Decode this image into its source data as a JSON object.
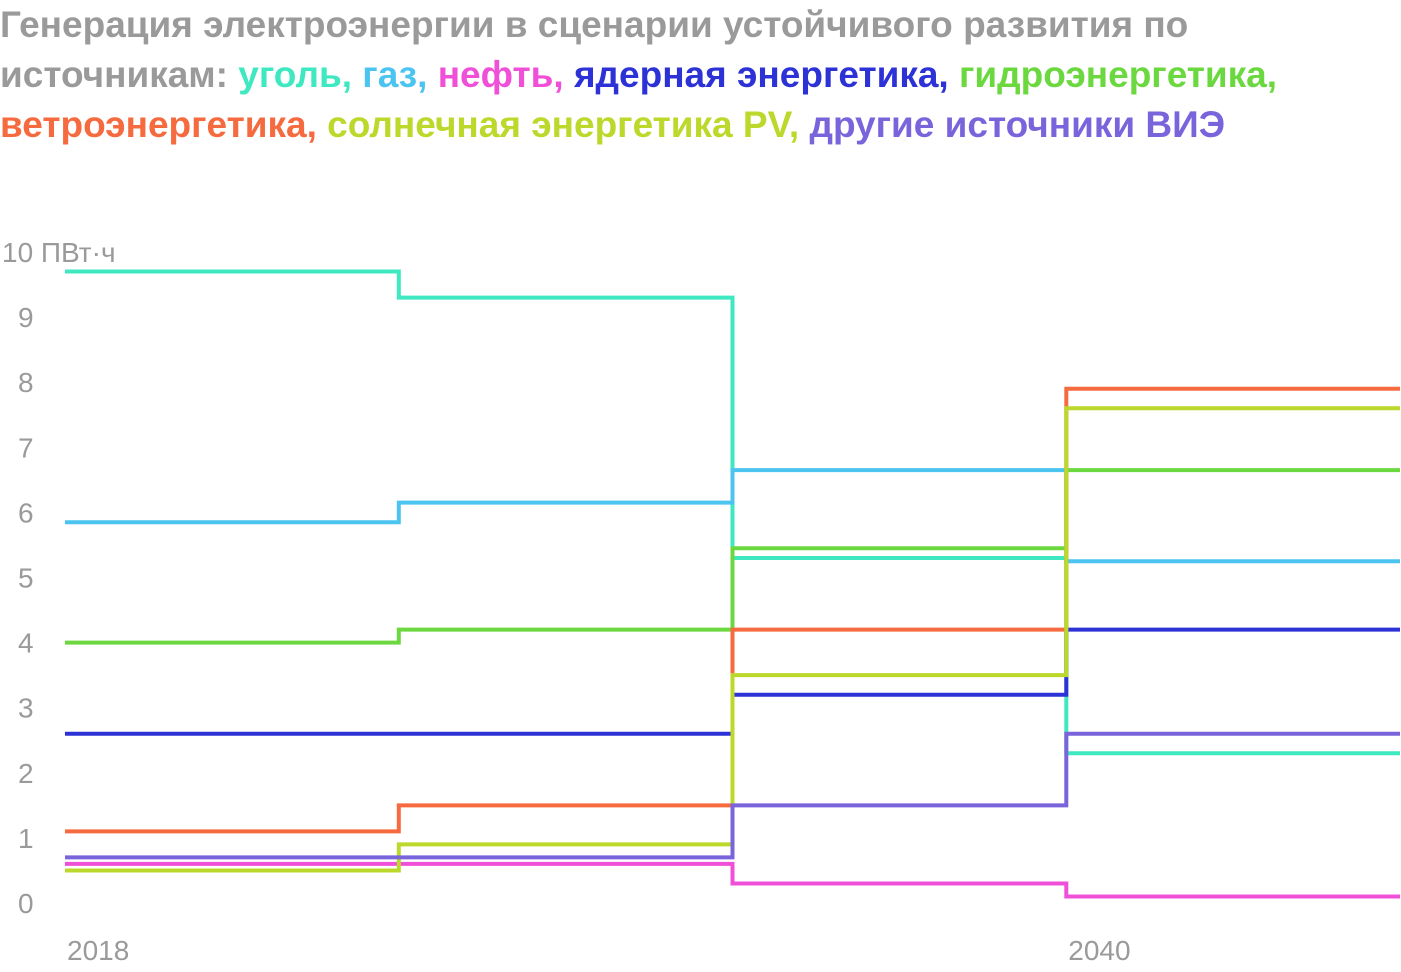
{
  "title": {
    "prefix": "Генерация электроэнергии в сценарии устойчивого развития по источникам: ",
    "legend_items": [
      {
        "text": "уголь",
        "color": "#3ee8c0"
      },
      {
        "text": "газ",
        "color": "#4cc4f0"
      },
      {
        "text": "нефть",
        "color": "#f050d8"
      },
      {
        "text": "ядерная энергетика",
        "color": "#2d32d6"
      },
      {
        "text": "гидроэнергетика",
        "color": "#6cd840"
      },
      {
        "text": "ветроэнергетика",
        "color": "#f56a3e"
      },
      {
        "text": "солнечная энергетика PV",
        "color": "#bcd82a"
      },
      {
        "text": "другие источники ВИЭ",
        "color": "#7a64dc"
      }
    ],
    "separator": ", ",
    "prefix_color": "#9a9a9a"
  },
  "chart_data": {
    "type": "line",
    "step": true,
    "title": "Генерация электроэнергии в сценарии устойчивого развития по источникам",
    "ylabel": "",
    "xlabel": "",
    "y_unit_label": "10 ПВт·ч",
    "ylim": [
      0,
      10
    ],
    "y_ticks": [
      {
        "value": 10,
        "label": "10 ПВт·ч"
      },
      {
        "value": 9,
        "label": "9"
      },
      {
        "value": 8,
        "label": "8"
      },
      {
        "value": 7,
        "label": "7"
      },
      {
        "value": 6,
        "label": "6"
      },
      {
        "value": 5,
        "label": "5"
      },
      {
        "value": 4,
        "label": "4"
      },
      {
        "value": 3,
        "label": "3"
      },
      {
        "value": 2,
        "label": "2"
      },
      {
        "value": 1,
        "label": "1"
      },
      {
        "value": 0,
        "label": "0"
      }
    ],
    "x_periods": 4,
    "x_ticks": [
      {
        "period_index": 0,
        "label": "2018"
      },
      {
        "period_index": 3,
        "label": "2040"
      }
    ],
    "series": [
      {
        "name": "уголь",
        "color": "#3ee8c0",
        "values": [
          9.7,
          9.3,
          5.3,
          2.3
        ]
      },
      {
        "name": "газ",
        "color": "#4cc4f0",
        "values": [
          5.85,
          6.15,
          6.65,
          5.25
        ]
      },
      {
        "name": "нефть",
        "color": "#f050d8",
        "values": [
          0.6,
          0.6,
          0.3,
          0.1
        ]
      },
      {
        "name": "ядерная энергетика",
        "color": "#2d32d6",
        "values": [
          2.6,
          2.6,
          3.2,
          4.2
        ]
      },
      {
        "name": "гидроэнергетика",
        "color": "#6cd840",
        "values": [
          4.0,
          4.2,
          5.45,
          6.65
        ]
      },
      {
        "name": "ветроэнергетика",
        "color": "#f56a3e",
        "values": [
          1.1,
          1.5,
          4.2,
          7.9
        ]
      },
      {
        "name": "солнечная энергетика PV",
        "color": "#bcd82a",
        "values": [
          0.5,
          0.9,
          3.5,
          7.6
        ]
      },
      {
        "name": "другие источники ВИЭ",
        "color": "#7a64dc",
        "values": [
          0.7,
          0.7,
          1.5,
          2.6
        ]
      }
    ],
    "grid": false,
    "legend_placement": "title"
  }
}
